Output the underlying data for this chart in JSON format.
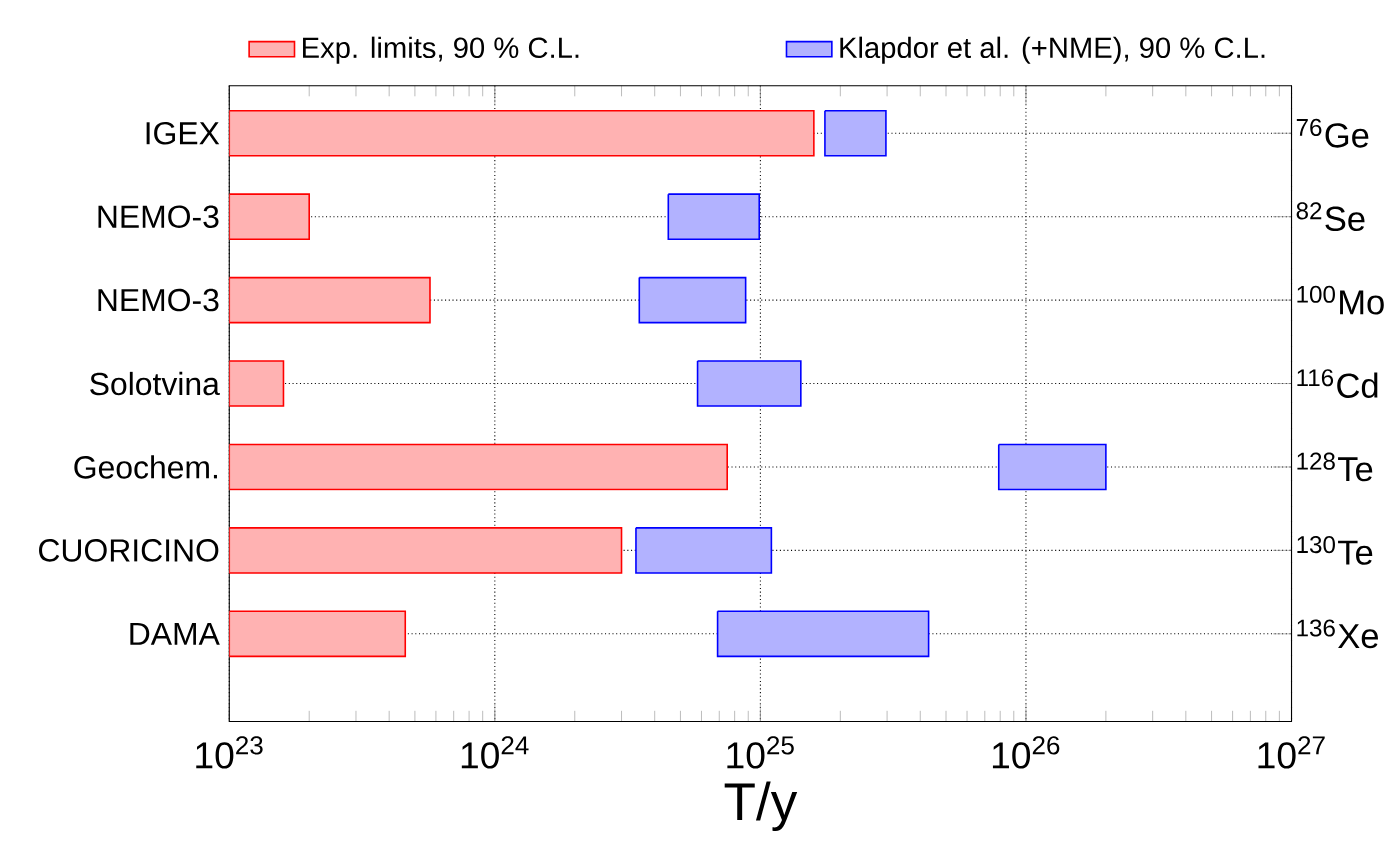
{
  "chart_data": {
    "type": "bar",
    "orientation": "horizontal",
    "log": "x",
    "xlabel": "T/y",
    "categories": [
      "IGEX",
      "NEMO-3",
      "NEMO-3",
      "Solotvina",
      "Geochem.",
      "CUORICINO",
      "DAMA"
    ],
    "y2_categories": [
      "$^{76}$Ge",
      "$^{82}$Se",
      "$^{100}$Mo",
      "$^{116}$Cd",
      "$^{128}$Te",
      "$^{130}$Te",
      "$^{136}$Xe"
    ],
    "series": [
      {
        "name": "Exp. limits, 90 % C.L.",
        "color": "#ff0000",
        "base": [
          1e+23,
          1e+23,
          1e+23,
          1e+23,
          1e+23,
          1e+23,
          1e+23
        ],
        "values": [
          1.58e+25,
          1e+23,
          4.7e+23,
          6e+22,
          7.4e+24,
          2.9e+24,
          3.6e+23
        ]
      },
      {
        "name": "Klapdor et al. (+NME), 90 % C.L.",
        "color": "#0000ff",
        "base": [
          1.75e+25,
          4.5e+24,
          3.5e+24,
          5.8e+24,
          7.9e+25,
          3.4e+24,
          6.9e+24
        ],
        "values": [
          1.22e+25,
          5.4e+24,
          5.3e+24,
          8.4e+24,
          1.21e+26,
          7.6e+24,
          3.61e+25
        ]
      }
    ],
    "xlim": [
      1e+23,
      1e+27
    ],
    "xticks": [
      {
        "value": 1e+23,
        "label": "10$^{23}$"
      },
      {
        "value": 1e+24,
        "label": "10$^{24}$"
      },
      {
        "value": 1e+25,
        "label": "10$^{25}$"
      },
      {
        "value": 1e+26,
        "label": "10$^{26}$"
      },
      {
        "value": 1e+27,
        "label": "10$^{27}$"
      }
    ],
    "grid": true,
    "legend": "top"
  }
}
